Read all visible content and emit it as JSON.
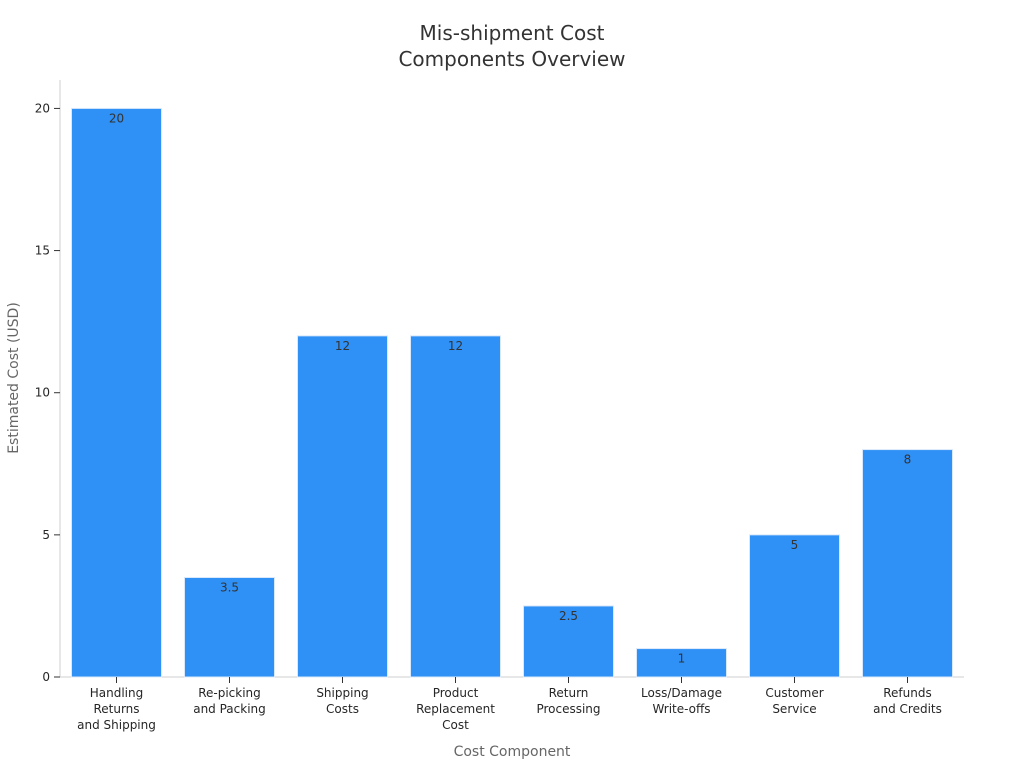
{
  "chart_data": {
    "type": "bar",
    "title": [
      "Mis-shipment Cost",
      "Components Overview"
    ],
    "xlabel": "Cost Component",
    "ylabel": "Estimated Cost (USD)",
    "ylim": [
      0,
      21
    ],
    "yticks": [
      0,
      5,
      10,
      15,
      20
    ],
    "grid": false,
    "categories": [
      [
        "Handling",
        "Returns",
        "and Shipping"
      ],
      [
        "Re-picking",
        "and Packing"
      ],
      [
        "Shipping",
        "Costs"
      ],
      [
        "Product",
        "Replacement",
        "Cost"
      ],
      [
        "Return",
        "Processing"
      ],
      [
        "Loss/Damage",
        "Write-offs"
      ],
      [
        "Customer",
        "Service"
      ],
      [
        "Refunds",
        "and Credits"
      ]
    ],
    "values": [
      20,
      3.5,
      12,
      12,
      2.5,
      1,
      5,
      8
    ],
    "data_labels": [
      "20",
      "3.5",
      "12",
      "12",
      "2.5",
      "1",
      "5",
      "8"
    ],
    "bar_color": "#2f90f6",
    "bar_edge_color": "#d9e9fb"
  }
}
